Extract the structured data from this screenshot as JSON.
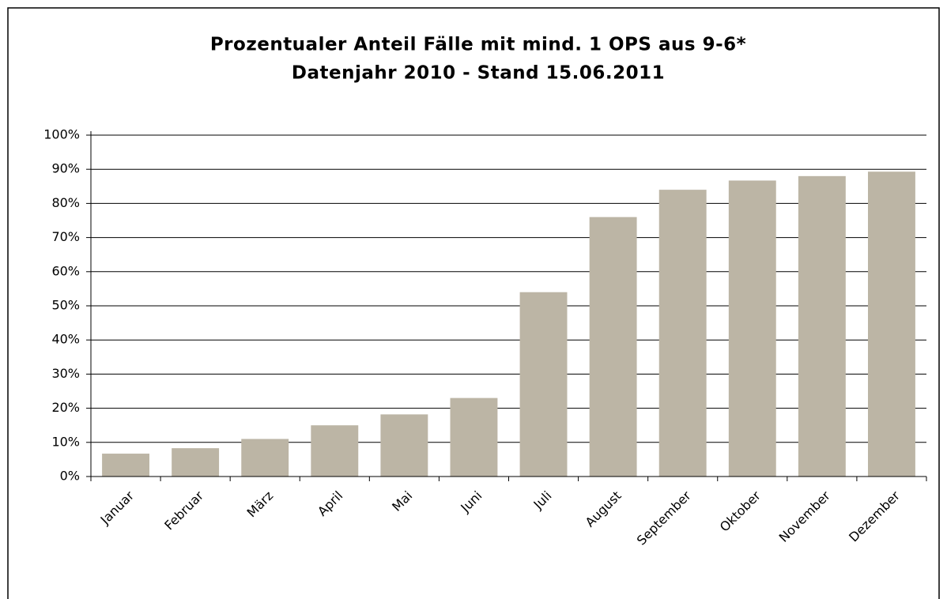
{
  "chart_data": {
    "type": "bar",
    "title": [
      "Prozentualer Anteil Fälle mit mind. 1 OPS aus 9-6*",
      "Datenjahr 2010 - Stand 15.06.2011"
    ],
    "categories": [
      "Januar",
      "Februar",
      "März",
      "April",
      "Mai",
      "Juni",
      "Juli",
      "August",
      "September",
      "Oktober",
      "November",
      "Dezember"
    ],
    "values": [
      6.7,
      8.3,
      11,
      15,
      18.2,
      23,
      54,
      76,
      84,
      86.7,
      88,
      89.3
    ],
    "color": "#bcb5a5",
    "ylim": [
      0,
      100
    ],
    "yticks": [
      {
        "value": 0,
        "label": "0%"
      },
      {
        "value": 10,
        "label": "10%"
      },
      {
        "value": 20,
        "label": "20%"
      },
      {
        "value": 30,
        "label": "30%"
      },
      {
        "value": 40,
        "label": "40%"
      },
      {
        "value": 50,
        "label": "50%"
      },
      {
        "value": 60,
        "label": "60%"
      },
      {
        "value": 70,
        "label": "70%"
      },
      {
        "value": 80,
        "label": "80%"
      },
      {
        "value": 90,
        "label": "90%"
      },
      {
        "value": 100,
        "label": "100%"
      }
    ],
    "grid": true
  }
}
